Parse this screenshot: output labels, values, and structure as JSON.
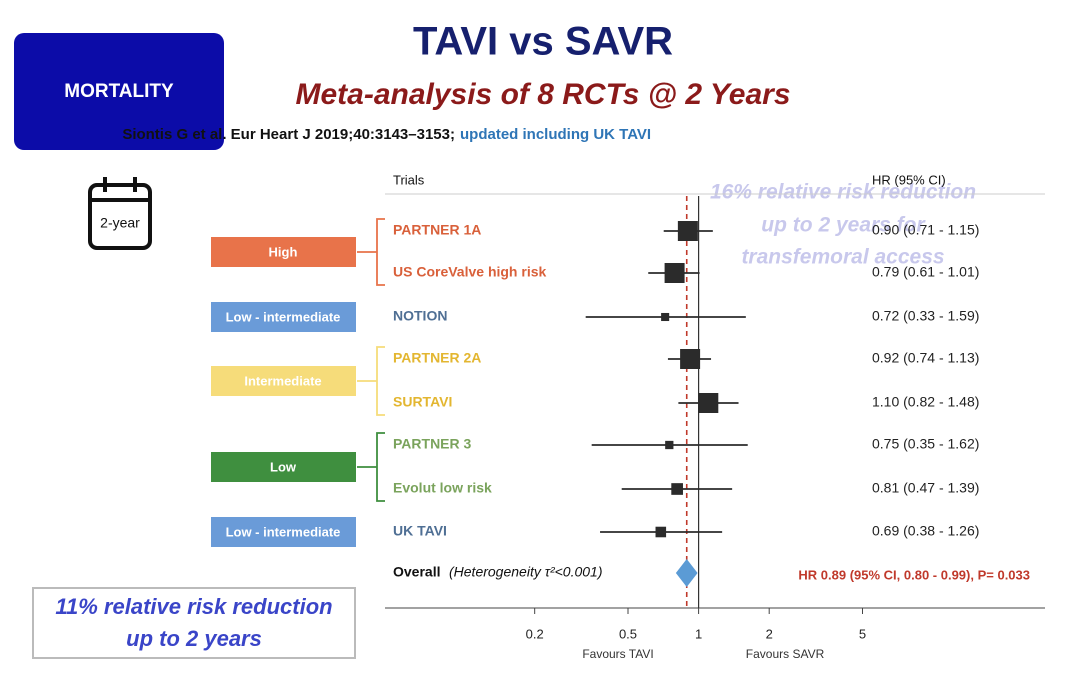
{
  "badge": "MORTALITY",
  "calendar": "2-year",
  "callout": [
    "11% relative risk reduction",
    "up to 2 years"
  ],
  "ghost_text": [
    "16% relative risk reduction",
    "up to 2 years for",
    "transfemoral access"
  ],
  "chart_data": {
    "type": "forest",
    "title": "TAVI vs SAVR",
    "subtitle": "Meta-analysis of 8 RCTs @ 2 Years",
    "source": "Siontis G et al. Eur Heart J 2019;40:3143–3153;",
    "source_note": "updated including UK TAVI",
    "column_headers": [
      "Trials",
      "HR (95% CI)"
    ],
    "groups": [
      {
        "label": "High",
        "color": "#e8734a",
        "text_color": "#d9603a"
      },
      {
        "label": "Low - intermediate",
        "color": "#6a9bd8",
        "text_color": "#4f6f94"
      },
      {
        "label": "Intermediate",
        "color": "#f6dc7a",
        "text_color": "#e3b630"
      },
      {
        "label": "Low",
        "color": "#3f8f3f",
        "text_color": "#7aa35c"
      },
      {
        "label": "Low - intermediate",
        "color": "#6a9bd8",
        "text_color": "#4f6f94"
      }
    ],
    "categories": [
      "PARTNER 1A",
      "US CoreValve high risk",
      "NOTION",
      "PARTNER 2A",
      "SURTAVI",
      "PARTNER 3",
      "Evolut low risk",
      "UK TAVI"
    ],
    "values": [
      0.9,
      0.79,
      0.72,
      0.92,
      1.1,
      0.75,
      0.81,
      0.69
    ],
    "lower": [
      0.71,
      0.61,
      0.33,
      0.74,
      0.82,
      0.35,
      0.47,
      0.38
    ],
    "upper": [
      1.15,
      1.01,
      1.59,
      1.13,
      1.48,
      1.62,
      1.39,
      1.26
    ],
    "value_labels": [
      "0.90 (0.71 - 1.15)",
      "0.79 (0.61 - 1.01)",
      "0.72 (0.33 - 1.59)",
      "0.92 (0.74 - 1.13)",
      "1.10 (0.82 - 1.48)",
      "0.75 (0.35 - 1.62)",
      "0.81 (0.47 - 1.39)",
      "0.69 (0.38 - 1.26)"
    ],
    "overall": {
      "label": "Overall",
      "note": "(Heterogeneity τ²<0.001)",
      "value": 0.89,
      "lower": 0.8,
      "upper": 0.99,
      "value_label": "HR 0.89 (95% CI, 0.80 - 0.99), P= 0.033"
    },
    "log_x": true,
    "xlim": [
      0.046,
      30
    ],
    "xticks": [
      0.2,
      0.5,
      1,
      2,
      5
    ],
    "x_labels": [
      "Favours TAVI",
      "Favours SAVR"
    ],
    "marker_color": "#2b2b2b",
    "diamond_color": "#5b9bd5",
    "overall_line_color": "#c0392b"
  }
}
